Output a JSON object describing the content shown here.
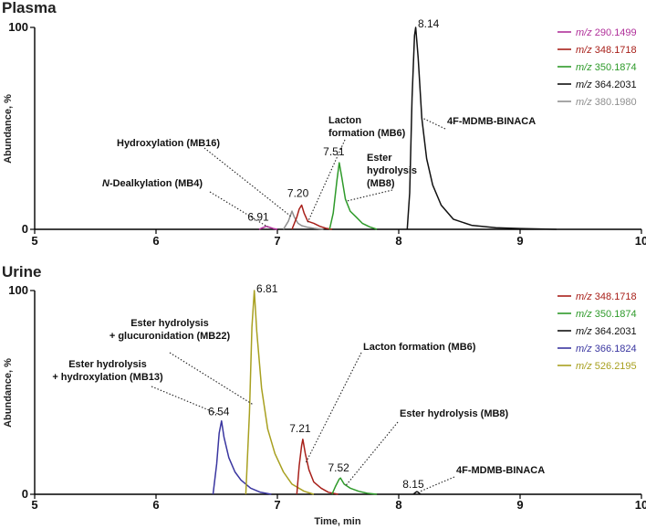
{
  "colors": {
    "m290": "#b0309a",
    "m348": "#a8201a",
    "m350": "#2e9a2a",
    "m364": "#111111",
    "m366": "#3a36a0",
    "m380": "#8f8f8f",
    "m526": "#a8a020"
  },
  "chart_data": [
    {
      "type": "line",
      "title": "Plasma",
      "ylabel": "Abundance, %",
      "xlabel": "",
      "xlim": [
        5,
        10
      ],
      "ylim": [
        0,
        100
      ],
      "x_ticks": [
        "5",
        "6",
        "7",
        "8",
        "9",
        "10"
      ],
      "y_ticks": [
        "0",
        "100"
      ],
      "legend_position": "top-right",
      "legend": [
        {
          "prefix": "m/z",
          "value": "290.1499",
          "color_key": "m290"
        },
        {
          "prefix": "m/z",
          "value": "348.1718",
          "color_key": "m348"
        },
        {
          "prefix": "m/z",
          "value": "350.1874",
          "color_key": "m350"
        },
        {
          "prefix": "m/z",
          "value": "364.2031",
          "color_key": "m364"
        },
        {
          "prefix": "m/z",
          "value": "380.1980",
          "color_key": "m380"
        }
      ],
      "series": [
        {
          "color_key": "m290",
          "x": [
            6.85,
            6.88,
            6.91,
            6.94,
            6.97,
            7.0
          ],
          "y": [
            0,
            0.8,
            1.5,
            0.9,
            0.3,
            0
          ]
        },
        {
          "color_key": "m380",
          "x": [
            7.05,
            7.09,
            7.12,
            7.14,
            7.17,
            7.2,
            7.25,
            7.3,
            7.38
          ],
          "y": [
            0,
            4,
            9,
            6,
            3,
            1.8,
            1,
            0.5,
            0
          ]
        },
        {
          "color_key": "m348",
          "x": [
            7.12,
            7.16,
            7.18,
            7.2,
            7.22,
            7.25,
            7.3,
            7.35,
            7.4,
            7.45
          ],
          "y": [
            0,
            6,
            10,
            12,
            8,
            4,
            3,
            1.5,
            0.5,
            0
          ]
        },
        {
          "color_key": "m350",
          "x": [
            7.43,
            7.46,
            7.49,
            7.51,
            7.53,
            7.56,
            7.6,
            7.65,
            7.7,
            7.76,
            7.82
          ],
          "y": [
            0,
            8,
            24,
            33,
            26,
            15,
            9,
            6,
            3,
            1.2,
            0
          ]
        },
        {
          "color_key": "m364",
          "x": [
            8.07,
            8.09,
            8.11,
            8.13,
            8.14,
            8.16,
            8.19,
            8.23,
            8.28,
            8.35,
            8.45,
            8.6,
            8.8,
            9.0,
            9.3
          ],
          "y": [
            0,
            18,
            65,
            96,
            100,
            85,
            55,
            35,
            22,
            12,
            5,
            2,
            0.8,
            0.4,
            0
          ]
        }
      ],
      "peak_labels": [
        {
          "text": "6.91",
          "x": 6.91,
          "y": 1.5
        },
        {
          "text": "7.20",
          "x": 7.2,
          "y": 12
        },
        {
          "text": "7.51",
          "x": 7.51,
          "y": 33
        },
        {
          "text": "8.14",
          "x": 8.14,
          "y": 100
        }
      ],
      "annotations": [
        {
          "lines": [
            "N-Dealkylation (MB4)"
          ],
          "italic_prefix": "N",
          "target": [
            6.92,
            1.2
          ]
        },
        {
          "lines": [
            "Hydroxylation (MB16)"
          ],
          "target": [
            7.12,
            6
          ]
        },
        {
          "lines": [
            "Lacton",
            "formation (MB6)"
          ],
          "target": [
            7.25,
            3.5
          ]
        },
        {
          "lines": [
            "Ester",
            "hydrolysis",
            "(MB8)"
          ],
          "target": [
            7.57,
            14
          ]
        },
        {
          "lines": [
            "4F-MDMB-BINACA"
          ],
          "target": [
            8.2,
            55
          ]
        }
      ]
    },
    {
      "type": "line",
      "title": "Urine",
      "ylabel": "Abundance, %",
      "xlabel": "Time, min",
      "xlim": [
        5,
        10
      ],
      "ylim": [
        0,
        100
      ],
      "x_ticks": [
        "5",
        "6",
        "7",
        "8",
        "9",
        "10"
      ],
      "y_ticks": [
        "0",
        "100"
      ],
      "legend_position": "top-right",
      "legend": [
        {
          "prefix": "m/z",
          "value": "348.1718",
          "color_key": "m348"
        },
        {
          "prefix": "m/z",
          "value": "350.1874",
          "color_key": "m350"
        },
        {
          "prefix": "m/z",
          "value": "364.2031",
          "color_key": "m364"
        },
        {
          "prefix": "m/z",
          "value": "366.1824",
          "color_key": "m366"
        },
        {
          "prefix": "m/z",
          "value": "526.2195",
          "color_key": "m526"
        }
      ],
      "series": [
        {
          "color_key": "m366",
          "x": [
            6.47,
            6.5,
            6.52,
            6.54,
            6.56,
            6.6,
            6.65,
            6.7,
            6.78,
            6.86,
            6.95
          ],
          "y": [
            0,
            15,
            30,
            36,
            28,
            18,
            11,
            7,
            3,
            1,
            0
          ]
        },
        {
          "color_key": "m526",
          "x": [
            6.74,
            6.77,
            6.79,
            6.81,
            6.83,
            6.87,
            6.92,
            6.98,
            7.05,
            7.12,
            7.22,
            7.3
          ],
          "y": [
            0,
            40,
            82,
            100,
            80,
            52,
            32,
            20,
            11,
            5,
            1.5,
            0
          ]
        },
        {
          "color_key": "m348",
          "x": [
            7.16,
            7.18,
            7.2,
            7.21,
            7.23,
            7.26,
            7.3,
            7.36,
            7.42,
            7.5
          ],
          "y": [
            0,
            14,
            24,
            27,
            20,
            12,
            6,
            3,
            1,
            0
          ]
        },
        {
          "color_key": "m350",
          "x": [
            7.45,
            7.48,
            7.51,
            7.52,
            7.55,
            7.6,
            7.67,
            7.74,
            7.82
          ],
          "y": [
            0,
            4,
            7.5,
            8,
            5,
            3,
            1.5,
            0.5,
            0
          ]
        },
        {
          "color_key": "m364",
          "x": [
            8.12,
            8.14,
            8.15,
            8.16,
            8.18
          ],
          "y": [
            0,
            1,
            1.3,
            1,
            0
          ]
        }
      ],
      "peak_labels": [
        {
          "text": "6.54",
          "x": 6.54,
          "y": 36
        },
        {
          "text": "6.81",
          "x": 6.81,
          "y": 100
        },
        {
          "text": "7.21",
          "x": 7.21,
          "y": 27
        },
        {
          "text": "7.52",
          "x": 7.52,
          "y": 8
        },
        {
          "text": "8.15",
          "x": 8.15,
          "y": 1.3
        }
      ],
      "annotations": [
        {
          "lines": [
            "Ester hydrolysis",
            "+ glucuronidation (MB22)"
          ],
          "target": [
            6.8,
            44
          ]
        },
        {
          "lines": [
            "Ester hydrolysis",
            "+ hydroxylation (MB13)"
          ],
          "target": [
            6.53,
            39
          ]
        },
        {
          "lines": [
            "Lacton formation (MB6)"
          ],
          "target": [
            7.23,
            15
          ]
        },
        {
          "lines": [
            "Ester hydrolysis (MB8)"
          ],
          "target": [
            7.56,
            4
          ]
        },
        {
          "lines": [
            "4F-MDMB-BINACA"
          ],
          "target": [
            8.18,
            1.5
          ]
        }
      ]
    }
  ]
}
